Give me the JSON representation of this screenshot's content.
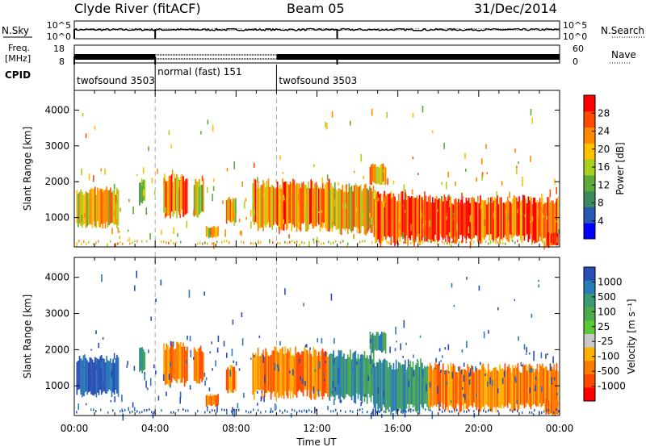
{
  "header": {
    "station": "Clyde River (fitACF)",
    "beam": "Beam 05",
    "date": "31/Dec/2014"
  },
  "labels": {
    "nsky": "N.Sky",
    "nsearch": "N.Search",
    "freq_line1": "Freq.",
    "freq_line2": "[MHz]",
    "nave": "Nave",
    "cpid": "CPID",
    "nsky_ticks": [
      "10^5",
      "10^0"
    ],
    "nsearch_ticks": [
      "10^5",
      "10^0"
    ],
    "freq_ticks": [
      "18",
      "8"
    ],
    "nave_ticks": [
      "60",
      "0"
    ]
  },
  "cpid_segments": [
    {
      "label": "twofsound 3503",
      "start_hour": 0
    },
    {
      "label": "normal (fast) 151",
      "start_hour": 4
    },
    {
      "label": "twofsound 3503",
      "start_hour": 10
    }
  ],
  "colors": {
    "power": [
      "#0000ff",
      "#2a58b4",
      "#3d8a5e",
      "#5caa3a",
      "#a8d020",
      "#ffc000",
      "#ff8a00",
      "#ff4a00",
      "#ff0000"
    ],
    "velocity": [
      "#2a4eb8",
      "#2a7ab8",
      "#3c9a72",
      "#4caa4a",
      "#5cc838",
      "#c8c8c8",
      "#ffb000",
      "#ff7a00",
      "#ff4a00",
      "#ff0000"
    ]
  },
  "chart_data": [
    {
      "type": "heatmap",
      "name": "power",
      "title": "",
      "ylabel": "Slant Range [km]",
      "xlabel": "",
      "xlim": [
        0,
        24
      ],
      "ylim": [
        180,
        4550
      ],
      "y_ticks": [
        1000,
        2000,
        3000,
        4000
      ],
      "colorbar": {
        "label": "Power [dB]",
        "ticks": [
          4,
          8,
          12,
          16,
          20,
          24,
          28
        ],
        "range": [
          0,
          32
        ]
      },
      "echo_regions": [
        {
          "t_start": 0.1,
          "t_end": 2.2,
          "r_min": 800,
          "r_max": 1750,
          "level": 20
        },
        {
          "t_start": 3.2,
          "t_end": 3.5,
          "r_min": 1400,
          "r_max": 2000,
          "level": 12
        },
        {
          "t_start": 4.4,
          "t_end": 5.6,
          "r_min": 1100,
          "r_max": 2100,
          "level": 22
        },
        {
          "t_start": 5.9,
          "t_end": 6.4,
          "r_min": 1100,
          "r_max": 2000,
          "level": 16
        },
        {
          "t_start": 6.5,
          "t_end": 7.1,
          "r_min": 450,
          "r_max": 750,
          "level": 20
        },
        {
          "t_start": 7.5,
          "t_end": 8.0,
          "r_min": 850,
          "r_max": 1500,
          "level": 18
        },
        {
          "t_start": 8.8,
          "t_end": 12.6,
          "r_min": 750,
          "r_max": 1950,
          "level": 24
        },
        {
          "t_start": 12.6,
          "t_end": 14.8,
          "r_min": 650,
          "r_max": 1850,
          "level": 20
        },
        {
          "t_start": 14.8,
          "t_end": 17.5,
          "r_min": 350,
          "r_max": 1600,
          "level": 28
        },
        {
          "t_start": 17.5,
          "t_end": 23.9,
          "r_min": 400,
          "r_max": 1500,
          "level": 28
        },
        {
          "t_start": 14.6,
          "t_end": 15.4,
          "r_min": 1950,
          "r_max": 2450,
          "level": 20
        },
        {
          "t_start": 23.3,
          "t_end": 23.9,
          "r_min": 200,
          "r_max": 600,
          "level": 28
        }
      ]
    },
    {
      "type": "heatmap",
      "name": "velocity",
      "title": "",
      "ylabel": "Slant Range [km]",
      "xlabel": "Time UT",
      "xlim": [
        0,
        24
      ],
      "ylim": [
        180,
        4550
      ],
      "y_ticks": [
        1000,
        2000,
        3000,
        4000
      ],
      "x_ticks": [
        "00:00",
        "04:00",
        "08:00",
        "12:00",
        "16:00",
        "20:00",
        "00:00"
      ],
      "colorbar": {
        "label": "Velocity [m s⁻¹]",
        "ticks": [
          "1000",
          "500",
          "100",
          "25",
          "-25",
          "-100",
          "-500",
          "-1000"
        ]
      },
      "echo_regions": [
        {
          "t_start": 0.1,
          "t_end": 2.2,
          "r_min": 800,
          "r_max": 1750,
          "level": 700
        },
        {
          "t_start": 3.2,
          "t_end": 3.5,
          "r_min": 1400,
          "r_max": 2000,
          "level": 200
        },
        {
          "t_start": 4.4,
          "t_end": 5.6,
          "r_min": 1100,
          "r_max": 2100,
          "level": -200
        },
        {
          "t_start": 5.9,
          "t_end": 6.4,
          "r_min": 1100,
          "r_max": 2000,
          "level": -200
        },
        {
          "t_start": 6.5,
          "t_end": 7.1,
          "r_min": 450,
          "r_max": 750,
          "level": -300
        },
        {
          "t_start": 7.5,
          "t_end": 8.0,
          "r_min": 850,
          "r_max": 1500,
          "level": -300
        },
        {
          "t_start": 8.8,
          "t_end": 12.6,
          "r_min": 750,
          "r_max": 1950,
          "level": -250
        },
        {
          "t_start": 12.6,
          "t_end": 14.8,
          "r_min": 650,
          "r_max": 1850,
          "level": 150
        },
        {
          "t_start": 14.8,
          "t_end": 17.5,
          "r_min": 350,
          "r_max": 1600,
          "level": 150
        },
        {
          "t_start": 17.5,
          "t_end": 23.9,
          "r_min": 400,
          "r_max": 1500,
          "level": -150
        },
        {
          "t_start": 14.6,
          "t_end": 15.4,
          "r_min": 1950,
          "r_max": 2450,
          "level": 200
        },
        {
          "t_start": 23.3,
          "t_end": 23.9,
          "r_min": 200,
          "r_max": 600,
          "level": -200
        }
      ]
    }
  ]
}
